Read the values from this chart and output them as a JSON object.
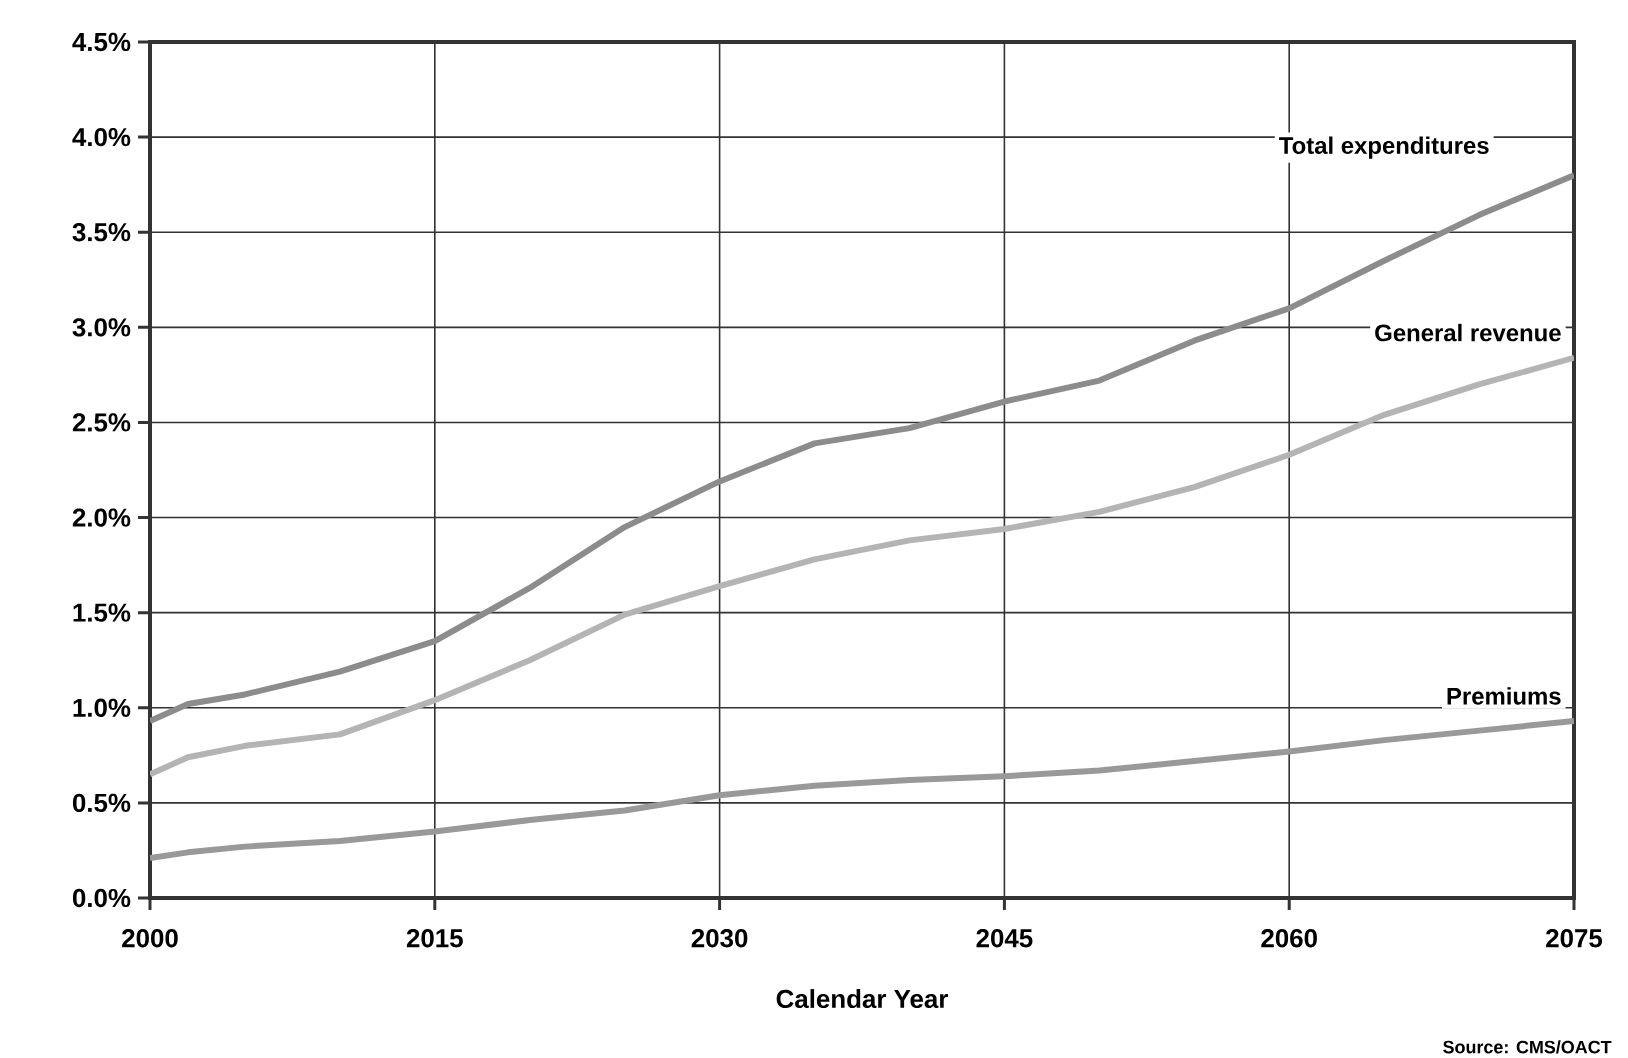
{
  "chart_data": {
    "type": "line",
    "xlabel": "Calendar Year",
    "x": [
      2000,
      2002,
      2005,
      2010,
      2015,
      2020,
      2025,
      2030,
      2035,
      2040,
      2045,
      2050,
      2055,
      2060,
      2065,
      2070,
      2075
    ],
    "series": [
      {
        "name": "Total expenditures",
        "color": "#8c8c8c",
        "values": [
          0.93,
          1.02,
          1.07,
          1.19,
          1.35,
          1.63,
          1.95,
          2.19,
          2.39,
          2.47,
          2.61,
          2.72,
          2.93,
          3.1,
          3.35,
          3.59,
          3.8
        ]
      },
      {
        "name": "General revenue",
        "color": "#b4b4b4",
        "values": [
          0.65,
          0.74,
          0.8,
          0.86,
          1.04,
          1.25,
          1.49,
          1.64,
          1.78,
          1.88,
          1.94,
          2.03,
          2.16,
          2.33,
          2.54,
          2.7,
          2.84
        ]
      },
      {
        "name": "Premiums",
        "color": "#999999",
        "values": [
          0.21,
          0.24,
          0.27,
          0.3,
          0.35,
          0.41,
          0.46,
          0.54,
          0.59,
          0.62,
          0.64,
          0.67,
          0.72,
          0.77,
          0.83,
          0.88,
          0.93
        ]
      }
    ],
    "xlim": [
      2000,
      2075
    ],
    "xticks": [
      2000,
      2015,
      2030,
      2045,
      2060,
      2075
    ],
    "ylim": [
      0,
      4.5
    ],
    "yticks": [
      {
        "value": 0,
        "label": "0.0%"
      },
      {
        "value": 0.5,
        "label": "0.5%"
      },
      {
        "value": 1,
        "label": "1.0%"
      },
      {
        "value": 1.5,
        "label": "1.5%"
      },
      {
        "value": 2,
        "label": "2.0%"
      },
      {
        "value": 2.5,
        "label": "2.5%"
      },
      {
        "value": 3,
        "label": "3.0%"
      },
      {
        "value": 3.5,
        "label": "3.5%"
      },
      {
        "value": 4,
        "label": "4.0%"
      },
      {
        "value": 4.5,
        "label": "4.5%"
      }
    ],
    "grid": true,
    "legend": false,
    "marker": "none",
    "line_style": "solid",
    "annotations": [
      "Source: CMS/OACT"
    ]
  }
}
